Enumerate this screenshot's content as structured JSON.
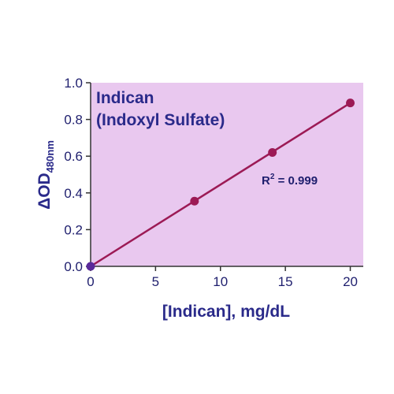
{
  "chart_data": {
    "type": "scatter",
    "title_line1": "Indican",
    "title_line2": "(Indoxyl Sulfate)",
    "xlabel": "[Indican], mg/dL",
    "ylabel_main": "ΔOD",
    "ylabel_sub": "480nm",
    "annotation_main": "R",
    "annotation_sup": "2",
    "annotation_rest": " = 0.999",
    "xlim": [
      0,
      21
    ],
    "ylim": [
      0,
      1.0
    ],
    "x_ticks": [
      0,
      5,
      10,
      15,
      20
    ],
    "x_tick_labels": [
      "0",
      "5",
      "10",
      "15",
      "20"
    ],
    "y_ticks": [
      0,
      0.2,
      0.4,
      0.6,
      0.8,
      1.0
    ],
    "y_tick_labels": [
      "0.0",
      "0.2",
      "0.4",
      "0.6",
      "0.8",
      "1.0"
    ],
    "series": [
      {
        "x": [
          0,
          8,
          14,
          20
        ],
        "y": [
          0.0,
          0.355,
          0.62,
          0.89
        ],
        "fit_line": true
      }
    ],
    "colors": {
      "plot_background": "#e9c8ef",
      "series": "#9c1a55",
      "origin_marker": "#5a2a9a",
      "axes": "#333333",
      "text": "#2a2a8a"
    },
    "grid": false
  }
}
